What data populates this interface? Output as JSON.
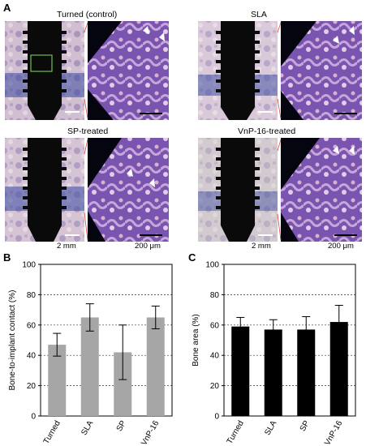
{
  "panel_labels": {
    "a": "A",
    "b": "B",
    "c": "C"
  },
  "micrographs": [
    {
      "title": "Turned (control)"
    },
    {
      "title": "SLA"
    },
    {
      "title": "SP-treated"
    },
    {
      "title": "VnP-16-treated"
    }
  ],
  "scale_bars": {
    "left_label": "2 mm",
    "right_label": "200 μm",
    "left_label_2": "2 mm",
    "right_label_2": "200 μm"
  },
  "colors": {
    "bar_b": "#a6a6a6",
    "bar_c": "#000000",
    "stain_light": "#d9b8cc",
    "stain_dark": "#4a2c85"
  },
  "chart_data": [
    {
      "type": "bar",
      "panel": "B",
      "categories": [
        "Turned",
        "SLA",
        "SP",
        "VnP-16"
      ],
      "values": [
        47,
        65,
        42,
        65
      ],
      "errors": [
        7.5,
        9,
        18,
        7.5
      ],
      "xlabel": "",
      "ylabel": "Bone-to-implant contact (%)",
      "ylim": [
        0,
        100
      ],
      "yticks": [
        0,
        20,
        40,
        60,
        80,
        100
      ],
      "grid": "dashed horizontal"
    },
    {
      "type": "bar",
      "panel": "C",
      "categories": [
        "Turned",
        "SLA",
        "SP",
        "VnP-16"
      ],
      "values": [
        59,
        57,
        57,
        62
      ],
      "errors": [
        6,
        6.5,
        8.5,
        11
      ],
      "xlabel": "",
      "ylabel": "Bone area (%)",
      "ylim": [
        0,
        100
      ],
      "yticks": [
        0,
        20,
        40,
        60,
        80,
        100
      ],
      "grid": "dashed horizontal"
    }
  ]
}
